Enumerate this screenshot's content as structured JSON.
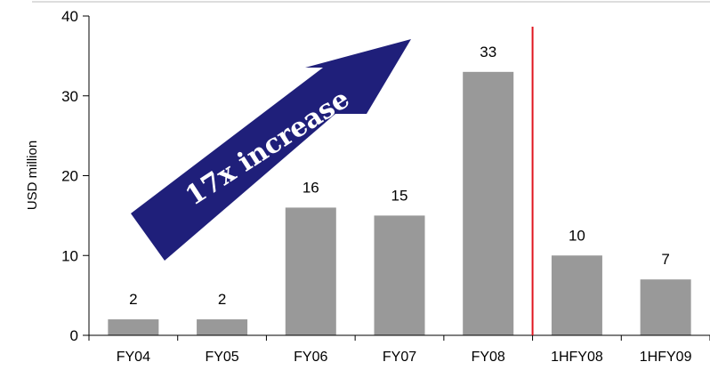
{
  "chart_data": {
    "type": "bar",
    "categories": [
      "FY04",
      "FY05",
      "FY06",
      "FY07",
      "FY08",
      "1HFY08",
      "1HFY09"
    ],
    "values": [
      2,
      2,
      16,
      15,
      33,
      10,
      7
    ],
    "data_labels": [
      "2",
      "2",
      "16",
      "15",
      "33",
      "10",
      "7"
    ],
    "ylabel": "USD million",
    "ylim": [
      0,
      40
    ],
    "yticks": [
      0,
      10,
      20,
      30,
      40
    ],
    "grid": false,
    "legend": "none",
    "bar_color": "#999999",
    "divider_color": "#e0161f",
    "divider_after_category": "FY08",
    "annotation": {
      "text": "17x increase",
      "shape": "arrow",
      "fill": "#1f1f7a"
    }
  }
}
